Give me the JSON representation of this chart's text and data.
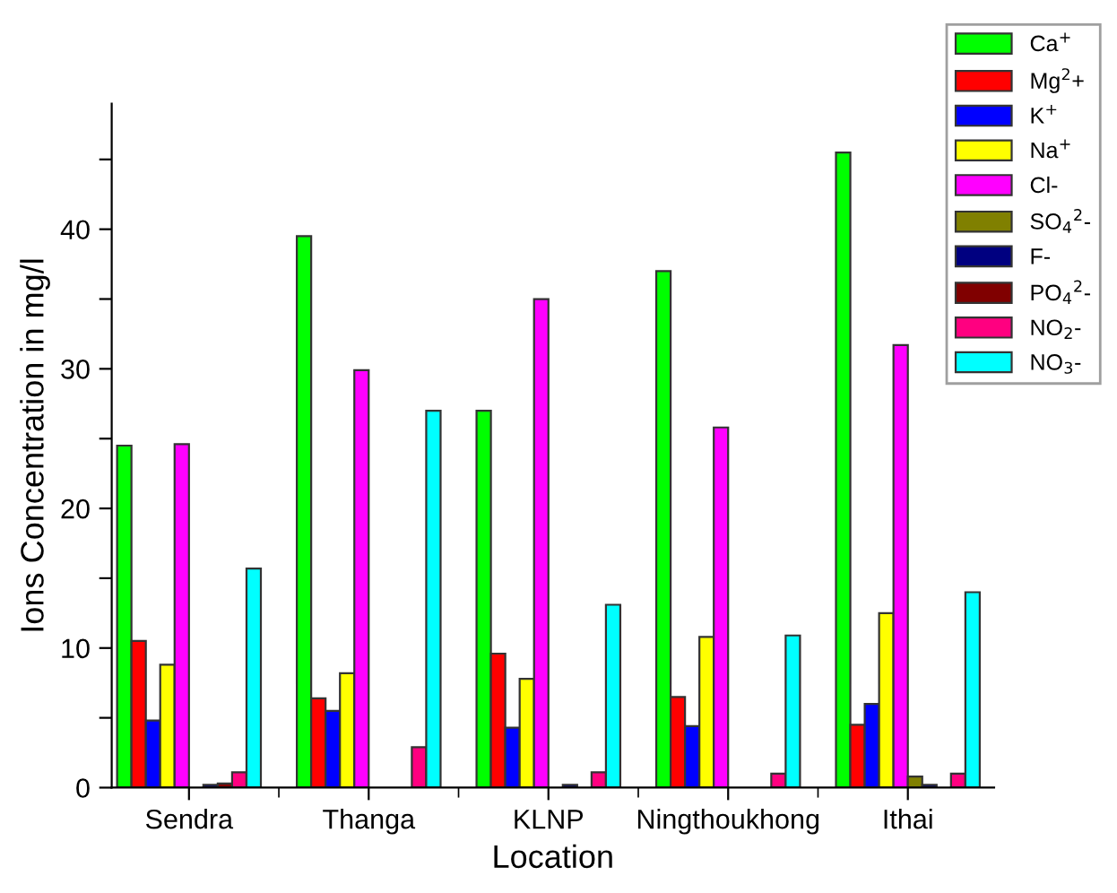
{
  "chart_data": {
    "type": "bar",
    "xlabel": "Location",
    "ylabel": "Ions Concentration in mg/l",
    "categories": [
      "Sendra",
      "Thanga",
      "KLNP",
      "Ningthoukhong",
      "Ithai"
    ],
    "series": [
      {
        "name": "Ca$^{+}$",
        "color": "#00ff00",
        "values": [
          24.5,
          39.5,
          27.0,
          37.0,
          45.5
        ]
      },
      {
        "name": "Mg$^{2}$+",
        "color": "#ff0000",
        "values": [
          10.5,
          6.4,
          9.6,
          6.5,
          4.5
        ]
      },
      {
        "name": "K$^{+}$",
        "color": "#0000ff",
        "values": [
          4.8,
          5.5,
          4.3,
          4.4,
          6.0
        ]
      },
      {
        "name": "Na$^{+}$",
        "color": "#ffff00",
        "values": [
          8.8,
          8.2,
          7.8,
          10.8,
          12.5
        ]
      },
      {
        "name": "Cl-",
        "color": "#ff00ff",
        "values": [
          24.6,
          29.9,
          35.0,
          25.8,
          31.7
        ]
      },
      {
        "name": "SO$_{4}$$^{2}$-",
        "color": "#808000",
        "values": [
          null,
          null,
          null,
          null,
          0.8
        ]
      },
      {
        "name": "F-",
        "color": "#000080",
        "values": [
          0.2,
          null,
          0.2,
          null,
          0.2
        ]
      },
      {
        "name": "PO$_{4}$$^{2}$-",
        "color": "#800000",
        "values": [
          0.3,
          null,
          null,
          null,
          null
        ]
      },
      {
        "name": "NO$_{2}$-",
        "color": "#ff0080",
        "values": [
          1.1,
          2.9,
          1.1,
          1.0,
          1.0
        ]
      },
      {
        "name": "NO$_{3}$-",
        "color": "#00ffff",
        "values": [
          15.7,
          27.0,
          13.1,
          10.9,
          14.0
        ]
      }
    ],
    "ylim": [
      0,
      49
    ],
    "yticks": [
      0,
      {
        "value": 5,
        "label": null
      },
      10,
      {
        "value": 15,
        "label": null
      },
      20,
      {
        "value": 25,
        "label": null
      },
      30,
      {
        "value": 35,
        "label": null
      },
      40,
      {
        "value": 45,
        "label": null
      }
    ],
    "grid": false,
    "legend": "top right"
  }
}
